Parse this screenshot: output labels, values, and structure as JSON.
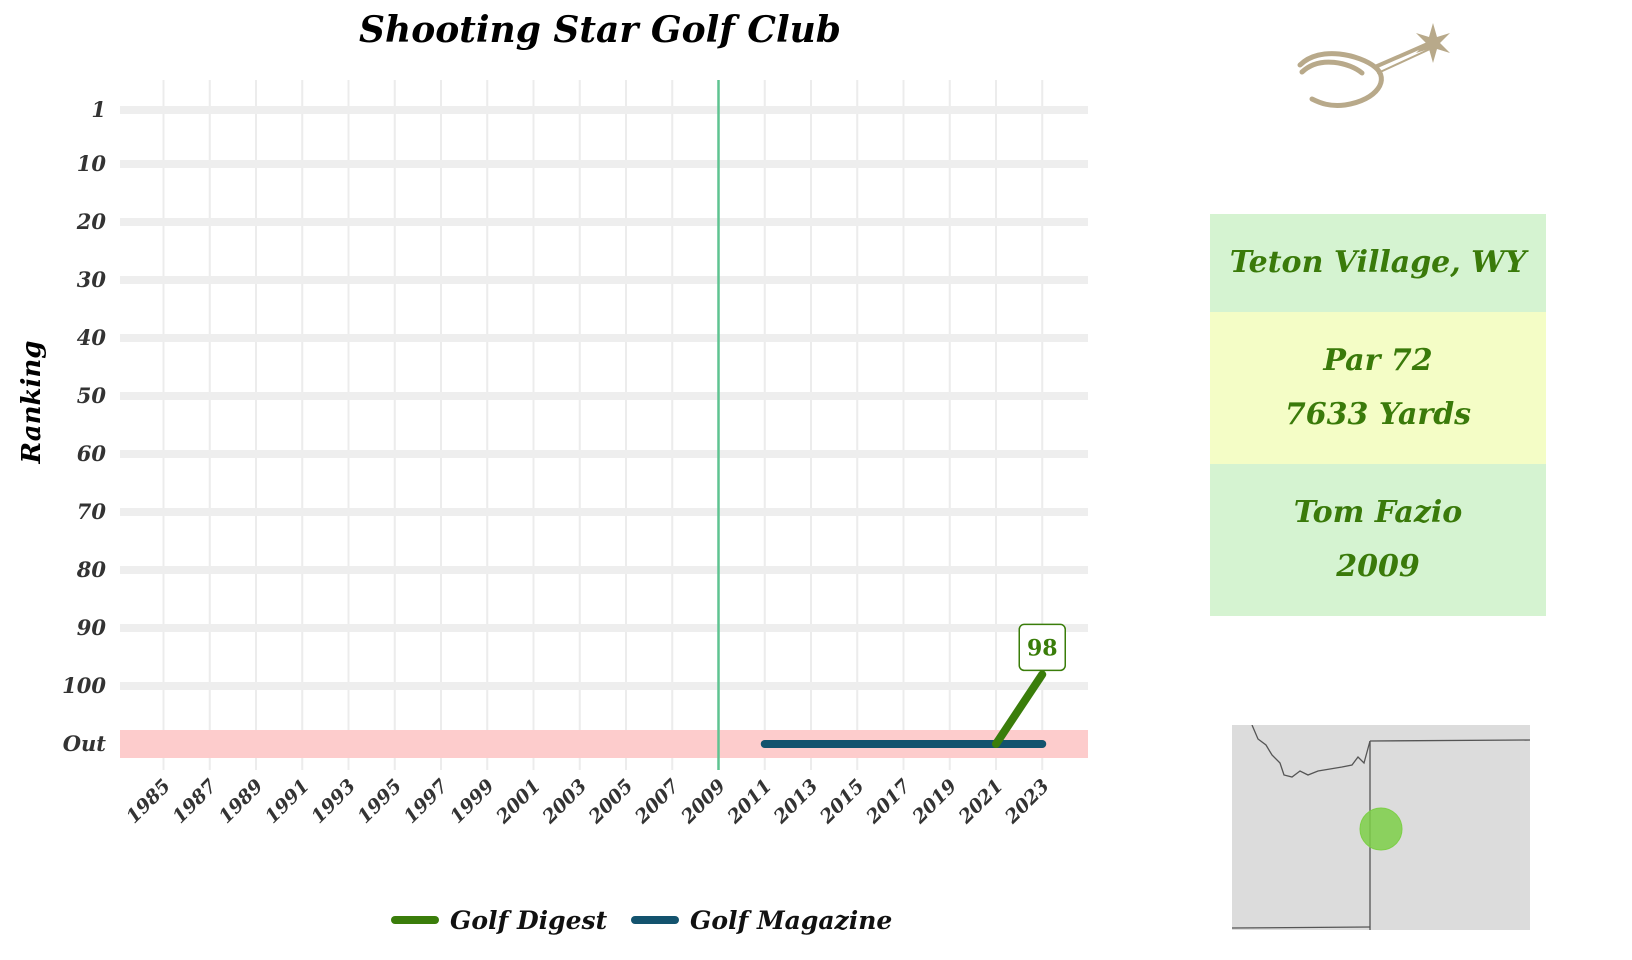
{
  "chart_data": {
    "type": "line",
    "title": "Shooting Star Golf Club",
    "ylabel": "Ranking",
    "xlabel": "",
    "x_ticks": [
      "1985",
      "1987",
      "1989",
      "1991",
      "1993",
      "1995",
      "1997",
      "1999",
      "2001",
      "2003",
      "2005",
      "2007",
      "2009",
      "2011",
      "2013",
      "2015",
      "2017",
      "2019",
      "2021",
      "2023"
    ],
    "y_ticks": [
      "1",
      "10",
      "20",
      "30",
      "40",
      "50",
      "60",
      "70",
      "80",
      "90",
      "100",
      "Out"
    ],
    "xlim": [
      1984,
      2025.8
    ],
    "y_reversed": true,
    "out_value": "Out",
    "reference_line_x": 2009,
    "series": [
      {
        "name": "Golf Digest",
        "color": "#3a7d0a",
        "points": [
          {
            "x": 2021,
            "y": "Out"
          },
          {
            "x": 2023,
            "y": 98
          }
        ]
      },
      {
        "name": "Golf Magazine",
        "color": "#13536e",
        "points": [
          {
            "x": 2011,
            "y": "Out"
          },
          {
            "x": 2013,
            "y": "Out"
          },
          {
            "x": 2015,
            "y": "Out"
          },
          {
            "x": 2017,
            "y": "Out"
          },
          {
            "x": 2019,
            "y": "Out"
          },
          {
            "x": 2021,
            "y": "Out"
          },
          {
            "x": 2023,
            "y": "Out"
          }
        ]
      }
    ],
    "data_labels": [
      {
        "series": "Golf Digest",
        "x": 2023,
        "text": "98"
      }
    ],
    "grid": true,
    "legend_position": "bottom",
    "reference_line_color": "#5fc391",
    "out_band_color": "#fdcccc"
  },
  "info": {
    "location": "Teton Village, WY",
    "par": "Par 72",
    "yards": "7633 Yards",
    "architect": "Tom Fazio",
    "year": "2009",
    "colors": {
      "light_green": "#d5f3d1",
      "light_yellow": "#f4fdc6",
      "text": "#3a7a0a"
    }
  },
  "map": {
    "marker_color": "#7dcf48",
    "background": "#dcdcdc"
  },
  "logo": {
    "icon": "shooting-star-spur-icon",
    "color": "#b8a98a"
  }
}
